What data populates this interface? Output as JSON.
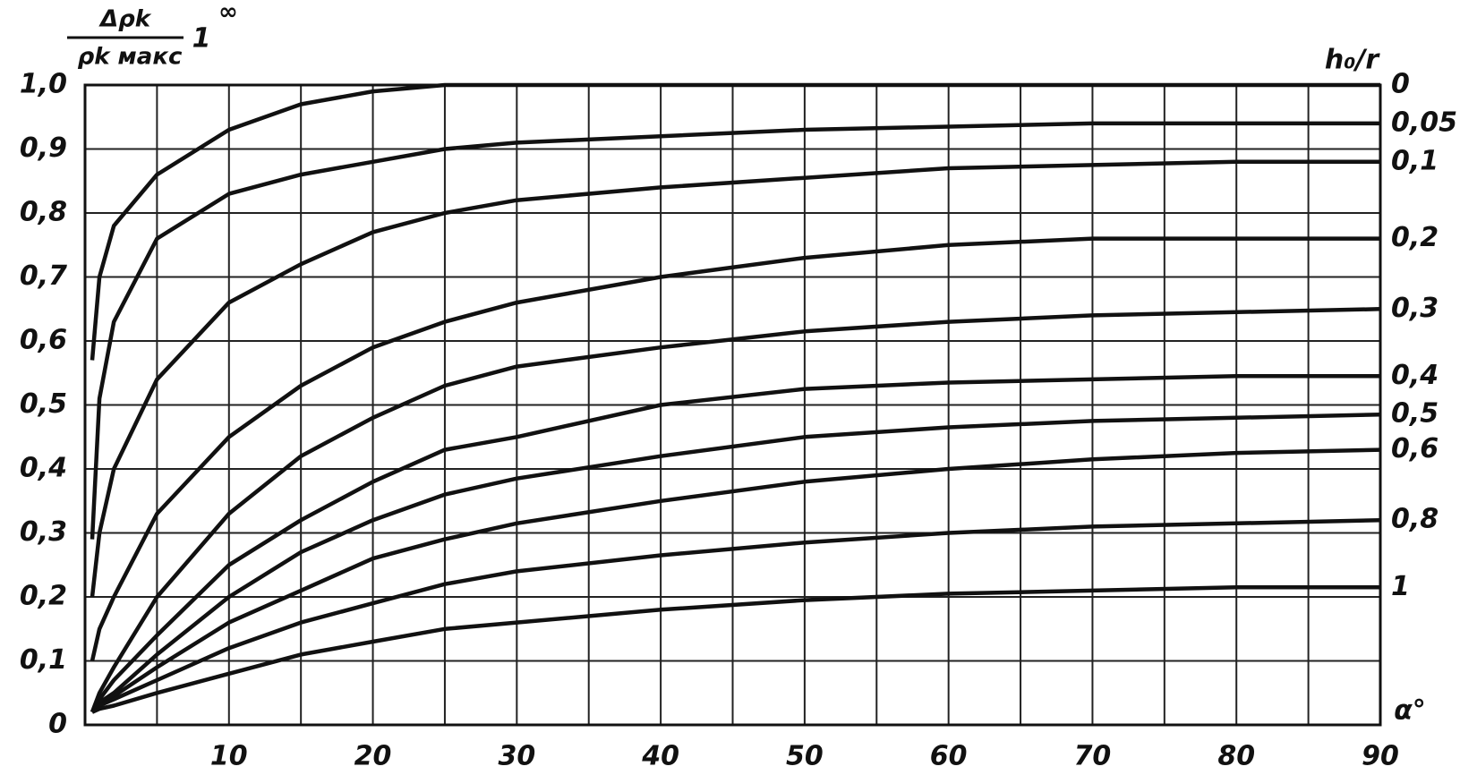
{
  "chart_data": {
    "type": "line",
    "y_label_numerator": "Δρk",
    "y_label_denominator": "ρk макс",
    "y_label_factor": "1",
    "y_label_factor_power": "∞",
    "legend_title": "h₀/r",
    "x_label": "α°",
    "x": [
      0.5,
      1,
      2,
      5,
      10,
      15,
      20,
      25,
      30,
      40,
      50,
      60,
      70,
      80,
      90
    ],
    "series": [
      {
        "name": "0",
        "color": "#111111",
        "values": [
          0.57,
          0.7,
          0.78,
          0.86,
          0.93,
          0.97,
          0.99,
          1.0,
          1.0,
          1.0,
          1.0,
          1.0,
          1.0,
          1.0,
          1.0
        ]
      },
      {
        "name": "0,05",
        "color": "#111111",
        "values": [
          0.29,
          0.51,
          0.63,
          0.76,
          0.83,
          0.86,
          0.88,
          0.9,
          0.91,
          0.92,
          0.93,
          0.935,
          0.94,
          0.94,
          0.94
        ]
      },
      {
        "name": "0,1",
        "color": "#111111",
        "values": [
          0.2,
          0.3,
          0.4,
          0.54,
          0.66,
          0.72,
          0.77,
          0.8,
          0.82,
          0.84,
          0.855,
          0.87,
          0.875,
          0.88,
          0.88
        ]
      },
      {
        "name": "0,2",
        "color": "#111111",
        "values": [
          0.1,
          0.15,
          0.2,
          0.33,
          0.45,
          0.53,
          0.59,
          0.63,
          0.66,
          0.7,
          0.73,
          0.75,
          0.76,
          0.76,
          0.76
        ]
      },
      {
        "name": "0,3",
        "color": "#111111",
        "values": [
          0.02,
          0.05,
          0.09,
          0.2,
          0.33,
          0.42,
          0.48,
          0.53,
          0.56,
          0.59,
          0.615,
          0.63,
          0.64,
          0.645,
          0.65
        ]
      },
      {
        "name": "0,4",
        "color": "#111111",
        "values": [
          0.02,
          0.04,
          0.07,
          0.14,
          0.25,
          0.32,
          0.38,
          0.43,
          0.45,
          0.5,
          0.525,
          0.535,
          0.54,
          0.545,
          0.545
        ]
      },
      {
        "name": "0,5",
        "color": "#111111",
        "values": [
          0.02,
          0.035,
          0.05,
          0.11,
          0.2,
          0.27,
          0.32,
          0.36,
          0.385,
          0.42,
          0.45,
          0.465,
          0.475,
          0.48,
          0.485
        ]
      },
      {
        "name": "0,6",
        "color": "#111111",
        "values": [
          0.02,
          0.03,
          0.045,
          0.09,
          0.16,
          0.21,
          0.26,
          0.29,
          0.315,
          0.35,
          0.38,
          0.4,
          0.415,
          0.425,
          0.43
        ]
      },
      {
        "name": "0,8",
        "color": "#111111",
        "values": [
          0.02,
          0.03,
          0.04,
          0.07,
          0.12,
          0.16,
          0.19,
          0.22,
          0.24,
          0.265,
          0.285,
          0.3,
          0.31,
          0.315,
          0.32
        ]
      },
      {
        "name": "1",
        "color": "#111111",
        "values": [
          0.02,
          0.025,
          0.03,
          0.05,
          0.08,
          0.11,
          0.13,
          0.15,
          0.16,
          0.18,
          0.195,
          0.205,
          0.21,
          0.215,
          0.215
        ]
      }
    ],
    "xlim": [
      0,
      90
    ],
    "ylim": [
      0,
      1
    ],
    "xticks": [
      10,
      20,
      30,
      40,
      50,
      60,
      70,
      80,
      90
    ],
    "xminor": [
      5,
      15,
      25,
      35,
      45,
      55,
      65,
      75,
      85
    ],
    "yticks": [
      0,
      {
        "value": 0.1,
        "label": "0,1"
      },
      {
        "value": 0.2,
        "label": "0,2"
      },
      {
        "value": 0.3,
        "label": "0,3"
      },
      {
        "value": 0.4,
        "label": "0,4"
      },
      {
        "value": 0.5,
        "label": "0,5"
      },
      {
        "value": 0.6,
        "label": "0,6"
      },
      {
        "value": 0.7,
        "label": "0,7"
      },
      {
        "value": 0.8,
        "label": "0,8"
      },
      {
        "value": 0.9,
        "label": "0,9"
      },
      {
        "value": 1,
        "label": "1,0"
      }
    ],
    "grid": true
  }
}
